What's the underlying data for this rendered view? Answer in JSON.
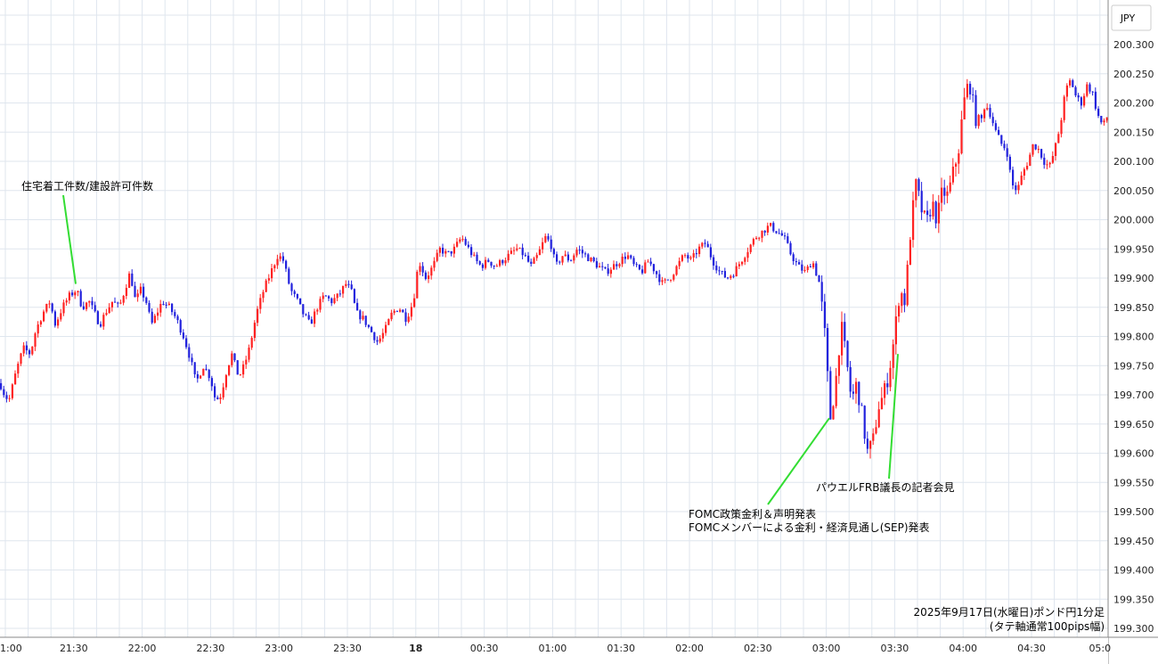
{
  "chart_data": {
    "type": "candlestick",
    "currency": "JPY",
    "caption_line1": "2025年9月17日(水曜日)ポンド円1分足",
    "caption_line2": "(タテ軸通常100pips幅)",
    "y_ticks": [
      "200.300",
      "200.250",
      "200.200",
      "200.150",
      "200.100",
      "200.050",
      "200.000",
      "199.950",
      "199.900",
      "199.850",
      "199.800",
      "199.750",
      "199.700",
      "199.650",
      "199.600",
      "199.550",
      "199.500",
      "199.450",
      "199.400",
      "199.350",
      "199.300"
    ],
    "x_ticks": [
      "1:00",
      "21:30",
      "22:00",
      "22:30",
      "23:00",
      "23:30",
      "18",
      "00:30",
      "01:00",
      "01:30",
      "02:00",
      "02:30",
      "03:00",
      "03:30",
      "04:00",
      "04:30",
      "05:0"
    ],
    "ylim": [
      199.3,
      200.3
    ],
    "up_color": "#ff2222",
    "down_color": "#2222dd",
    "path_points": [
      [
        0,
        199.72
      ],
      [
        5,
        199.7
      ],
      [
        10,
        199.69
      ],
      [
        18,
        199.74
      ],
      [
        26,
        199.78
      ],
      [
        34,
        199.77
      ],
      [
        40,
        199.81
      ],
      [
        48,
        199.84
      ],
      [
        56,
        199.86
      ],
      [
        62,
        199.82
      ],
      [
        70,
        199.85
      ],
      [
        78,
        199.87
      ],
      [
        86,
        199.88
      ],
      [
        92,
        199.85
      ],
      [
        100,
        199.86
      ],
      [
        106,
        199.84
      ],
      [
        112,
        199.82
      ],
      [
        118,
        199.84
      ],
      [
        126,
        199.86
      ],
      [
        134,
        199.85
      ],
      [
        140,
        199.88
      ],
      [
        146,
        199.91
      ],
      [
        152,
        199.86
      ],
      [
        158,
        199.88
      ],
      [
        164,
        199.86
      ],
      [
        170,
        199.82
      ],
      [
        176,
        199.84
      ],
      [
        182,
        199.86
      ],
      [
        190,
        199.85
      ],
      [
        198,
        199.83
      ],
      [
        206,
        199.8
      ],
      [
        214,
        199.76
      ],
      [
        220,
        199.72
      ],
      [
        228,
        199.75
      ],
      [
        236,
        199.73
      ],
      [
        242,
        199.69
      ],
      [
        248,
        199.7
      ],
      [
        254,
        199.74
      ],
      [
        260,
        199.77
      ],
      [
        268,
        199.73
      ],
      [
        274,
        199.75
      ],
      [
        280,
        199.78
      ],
      [
        288,
        199.84
      ],
      [
        296,
        199.88
      ],
      [
        304,
        199.91
      ],
      [
        312,
        199.94
      ],
      [
        318,
        199.93
      ],
      [
        326,
        199.88
      ],
      [
        334,
        199.86
      ],
      [
        340,
        199.84
      ],
      [
        348,
        199.82
      ],
      [
        356,
        199.85
      ],
      [
        364,
        199.87
      ],
      [
        372,
        199.86
      ],
      [
        380,
        199.87
      ],
      [
        388,
        199.89
      ],
      [
        394,
        199.88
      ],
      [
        400,
        199.84
      ],
      [
        408,
        199.83
      ],
      [
        416,
        199.81
      ],
      [
        424,
        199.79
      ],
      [
        432,
        199.81
      ],
      [
        440,
        199.84
      ],
      [
        448,
        199.85
      ],
      [
        456,
        199.83
      ],
      [
        464,
        199.86
      ],
      [
        470,
        199.93
      ],
      [
        478,
        199.9
      ],
      [
        486,
        199.92
      ],
      [
        494,
        199.95
      ],
      [
        502,
        199.94
      ],
      [
        510,
        199.95
      ],
      [
        518,
        199.97
      ],
      [
        526,
        199.95
      ],
      [
        534,
        199.93
      ],
      [
        540,
        199.92
      ],
      [
        548,
        199.93
      ],
      [
        556,
        199.92
      ],
      [
        564,
        199.93
      ],
      [
        572,
        199.94
      ],
      [
        580,
        199.95
      ],
      [
        588,
        199.94
      ],
      [
        596,
        199.92
      ],
      [
        604,
        199.94
      ],
      [
        612,
        199.97
      ],
      [
        618,
        199.96
      ],
      [
        624,
        199.92
      ],
      [
        632,
        199.94
      ],
      [
        640,
        199.93
      ],
      [
        648,
        199.95
      ],
      [
        656,
        199.94
      ],
      [
        664,
        199.93
      ],
      [
        672,
        199.92
      ],
      [
        680,
        199.91
      ],
      [
        688,
        199.92
      ],
      [
        696,
        199.93
      ],
      [
        704,
        199.94
      ],
      [
        712,
        199.92
      ],
      [
        720,
        199.91
      ],
      [
        728,
        199.93
      ],
      [
        736,
        199.91
      ],
      [
        744,
        199.89
      ],
      [
        752,
        199.9
      ],
      [
        760,
        199.92
      ],
      [
        768,
        199.94
      ],
      [
        776,
        199.93
      ],
      [
        784,
        199.95
      ],
      [
        792,
        199.96
      ],
      [
        800,
        199.93
      ],
      [
        808,
        199.91
      ],
      [
        816,
        199.9
      ],
      [
        824,
        199.91
      ],
      [
        832,
        199.93
      ],
      [
        840,
        199.95
      ],
      [
        848,
        199.97
      ],
      [
        856,
        199.98
      ],
      [
        864,
        199.99
      ],
      [
        872,
        199.98
      ],
      [
        880,
        199.97
      ],
      [
        888,
        199.94
      ],
      [
        896,
        199.92
      ],
      [
        904,
        199.91
      ],
      [
        912,
        199.93
      ],
      [
        920,
        199.89
      ],
      [
        926,
        199.8
      ],
      [
        932,
        199.66
      ],
      [
        938,
        199.72
      ],
      [
        944,
        199.82
      ],
      [
        950,
        199.76
      ],
      [
        956,
        199.69
      ],
      [
        962,
        199.72
      ],
      [
        968,
        199.66
      ],
      [
        974,
        199.6
      ],
      [
        980,
        199.62
      ],
      [
        986,
        199.68
      ],
      [
        992,
        199.7
      ],
      [
        998,
        199.74
      ],
      [
        1004,
        199.8
      ],
      [
        1010,
        199.88
      ],
      [
        1016,
        199.86
      ],
      [
        1022,
        199.98
      ],
      [
        1028,
        200.06
      ],
      [
        1034,
        200.02
      ],
      [
        1040,
        199.99
      ],
      [
        1046,
        200.03
      ],
      [
        1052,
        200.0
      ],
      [
        1058,
        200.05
      ],
      [
        1064,
        200.04
      ],
      [
        1070,
        200.08
      ],
      [
        1076,
        200.12
      ],
      [
        1082,
        200.2
      ],
      [
        1088,
        200.24
      ],
      [
        1094,
        200.18
      ],
      [
        1100,
        200.16
      ],
      [
        1106,
        200.2
      ],
      [
        1112,
        200.18
      ],
      [
        1118,
        200.15
      ],
      [
        1124,
        200.13
      ],
      [
        1130,
        200.12
      ],
      [
        1136,
        200.06
      ],
      [
        1142,
        200.05
      ],
      [
        1148,
        200.08
      ],
      [
        1154,
        200.1
      ],
      [
        1160,
        200.13
      ],
      [
        1166,
        200.12
      ],
      [
        1172,
        200.1
      ],
      [
        1178,
        200.09
      ],
      [
        1184,
        200.12
      ],
      [
        1190,
        200.16
      ],
      [
        1196,
        200.22
      ],
      [
        1202,
        200.24
      ],
      [
        1208,
        200.21
      ],
      [
        1214,
        200.2
      ],
      [
        1220,
        200.23
      ],
      [
        1226,
        200.22
      ],
      [
        1232,
        200.18
      ],
      [
        1238,
        200.16
      ],
      [
        1244,
        200.18
      ]
    ],
    "annotations": [
      {
        "lines": [
          "住宅着工件数/建設許可件数"
        ],
        "value": 199.89
      },
      {
        "lines": [
          "FOMC政策金利＆声明発表",
          "FOMCメンバーによる金利・経済見通し(SEP)発表"
        ],
        "value": 199.66
      },
      {
        "lines": [
          "パウエルFRB議長の記者会見"
        ],
        "value": 199.77
      }
    ]
  }
}
